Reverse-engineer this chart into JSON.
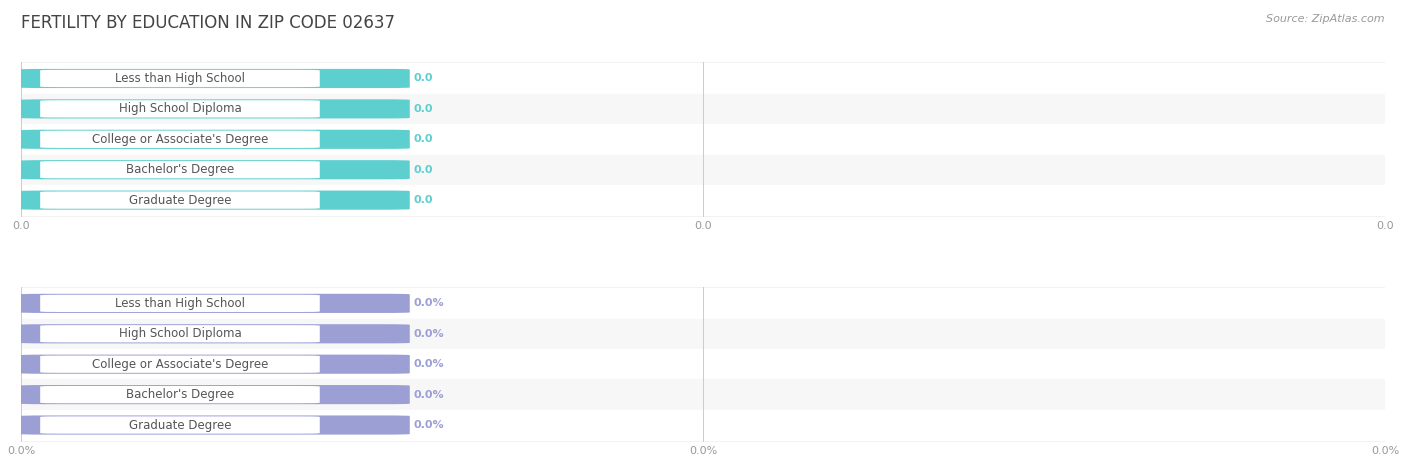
{
  "title": "FERTILITY BY EDUCATION IN ZIP CODE 02637",
  "source": "Source: ZipAtlas.com",
  "categories": [
    "Less than High School",
    "High School Diploma",
    "College or Associate's Degree",
    "Bachelor's Degree",
    "Graduate Degree"
  ],
  "top_values": [
    0.0,
    0.0,
    0.0,
    0.0,
    0.0
  ],
  "bottom_values": [
    0.0,
    0.0,
    0.0,
    0.0,
    0.0
  ],
  "top_bar_color": "#5ECFCF",
  "bottom_bar_color": "#9B9FD4",
  "top_tick_labels": [
    "0.0",
    "0.0",
    "0.0"
  ],
  "bottom_tick_labels": [
    "0.0%",
    "0.0%",
    "0.0%"
  ],
  "title_fontsize": 12,
  "label_fontsize": 8.5,
  "value_fontsize": 8,
  "source_fontsize": 8,
  "tick_text_color": "#999999",
  "label_text_color": "#555555",
  "value_text_color": "#888888",
  "fig_bg": "#FFFFFF",
  "row_bg": "#EFEFEF",
  "row_line_color": "#DDDDDD"
}
